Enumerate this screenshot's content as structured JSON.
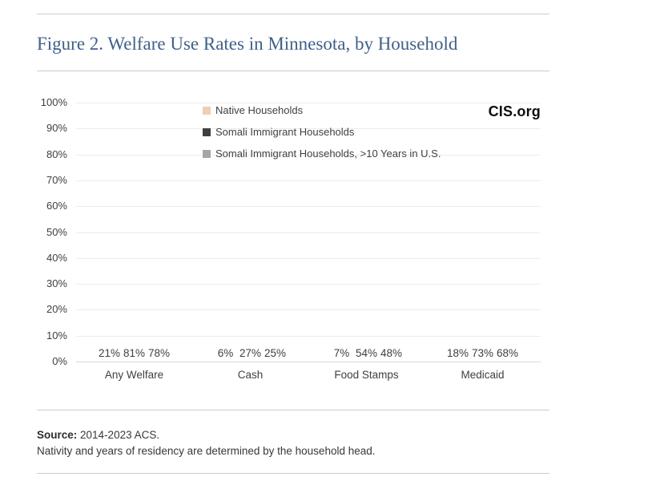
{
  "page": {
    "title": "Figure 2. Welfare Use Rates in Minnesota, by Household",
    "brand": "CIS.org",
    "source_label": "Source:",
    "source_text": "2014-2023 ACS.",
    "note_text": "Nativity and years of residency are determined by the household head."
  },
  "chart_data": {
    "type": "bar",
    "title": "Figure 2. Welfare Use Rates in Minnesota, by Household",
    "categories": [
      "Any Welfare",
      "Cash",
      "Food Stamps",
      "Medicaid"
    ],
    "series": [
      {
        "name": "Native Households",
        "color": "#F2CDB0",
        "values": [
          21,
          6,
          7,
          18
        ]
      },
      {
        "name": "Somali Immigrant Households",
        "color": "#404040",
        "values": [
          81,
          27,
          54,
          73
        ]
      },
      {
        "name": "Somali Immigrant Households, >10 Years in U.S.",
        "color": "#A6A6A6",
        "values": [
          78,
          25,
          48,
          68
        ]
      }
    ],
    "xlabel": "",
    "ylabel": "",
    "ylim": [
      0,
      100
    ],
    "ytick_step": 10,
    "ytick_suffix": "%",
    "value_label_suffix": "%",
    "grid": true,
    "legend_position": "top-center",
    "colors": {
      "gridline": "#ECECEC",
      "axis_line": "#D8D8D8",
      "text": "#3F3F3F",
      "title": "#406089",
      "divider": "#CCCCCC"
    }
  }
}
